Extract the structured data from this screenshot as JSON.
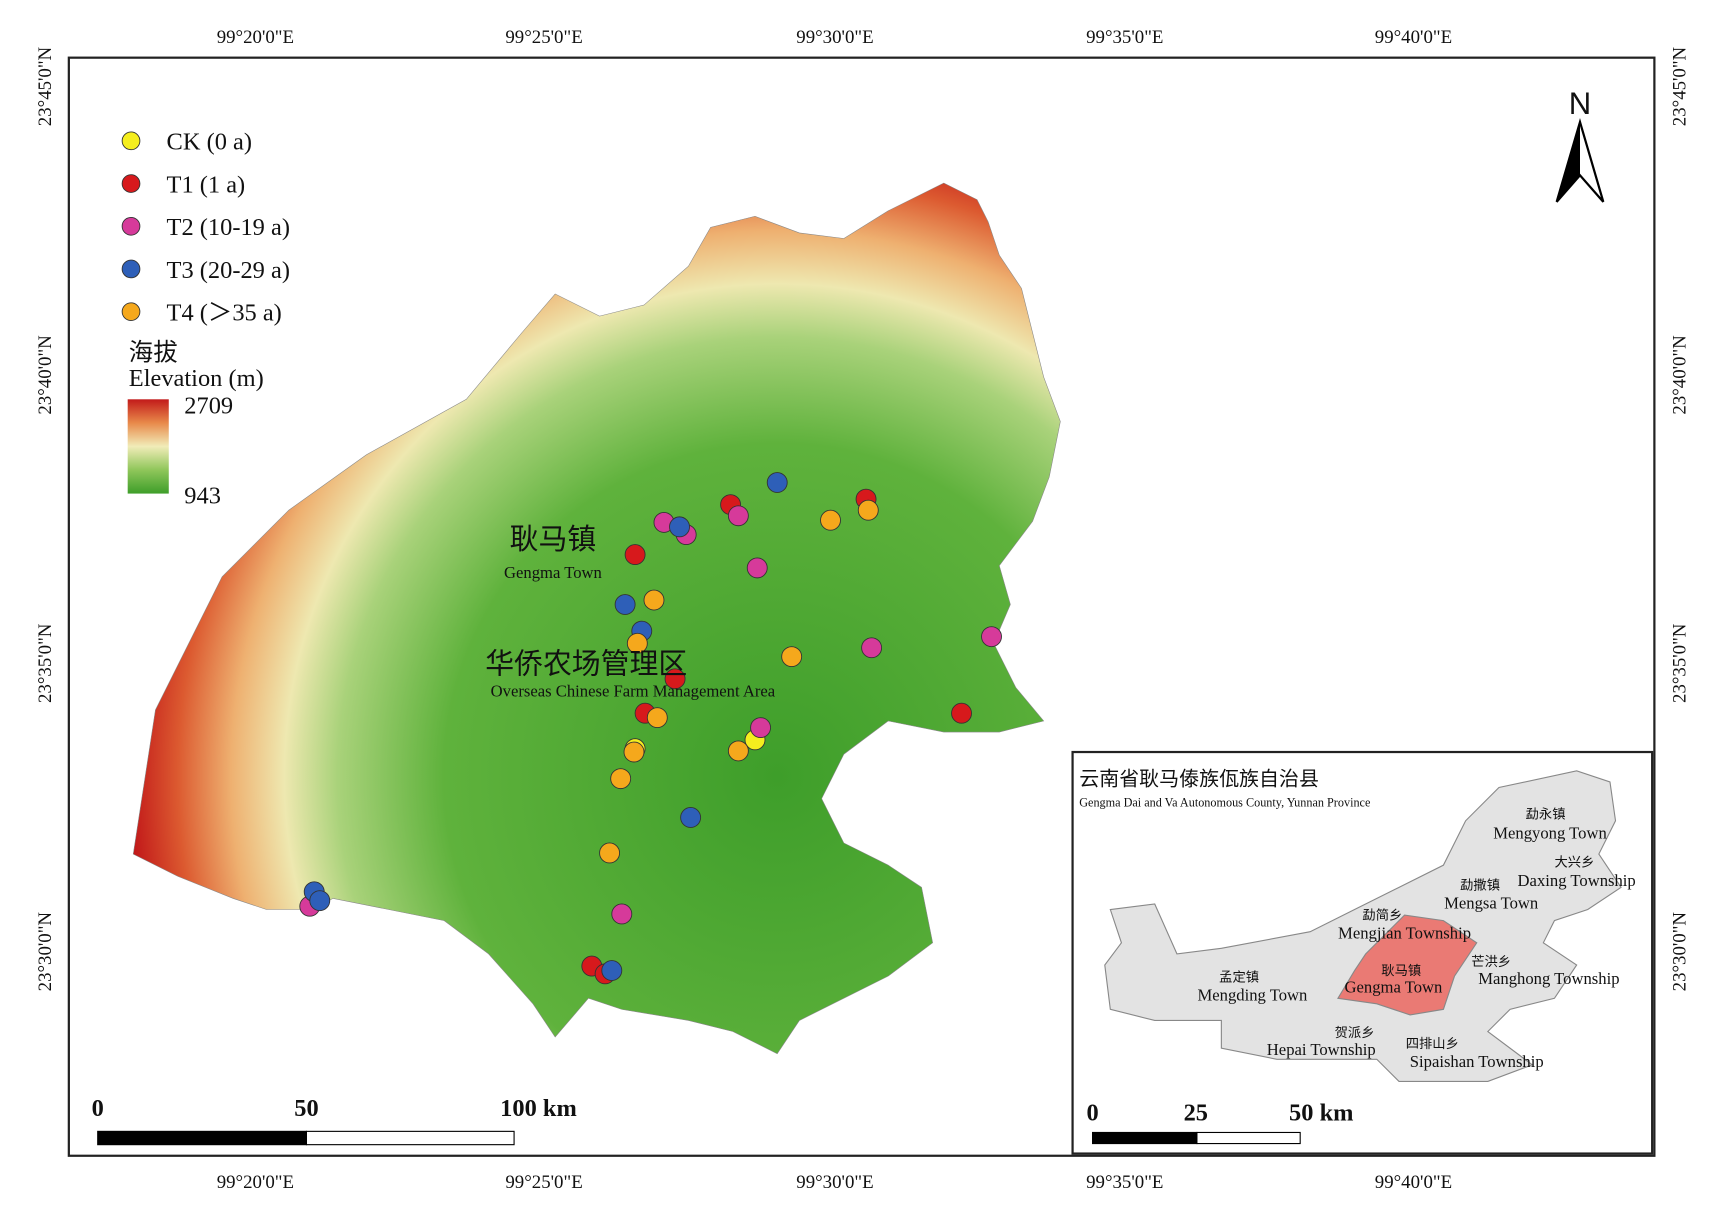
{
  "graticule": {
    "longitudes": [
      "99°20'0\"E",
      "99°25'0\"E",
      "99°30'0\"E",
      "99°35'0\"E",
      "99°40'0\"E"
    ],
    "latitudes": [
      "23°45'0\"N",
      "23°40'0\"N",
      "23°35'0\"N",
      "23°30'0\"N"
    ]
  },
  "legend": {
    "items": [
      {
        "label": "CK (0 a)",
        "color": "#f5ee1e"
      },
      {
        "label": "T1 (1 a)",
        "color": "#d7191c"
      },
      {
        "label": "T2 (10-19 a)",
        "color": "#d63a9a"
      },
      {
        "label": "T3 (20-29 a)",
        "color": "#2e5fb8"
      },
      {
        "label": "T4 (＞35 a)",
        "color": "#f5a81c"
      }
    ]
  },
  "elevation": {
    "title_zh": "海拔",
    "title_en": "Elevation (m)",
    "max": "2709",
    "min": "943"
  },
  "north": "N",
  "places": [
    {
      "zh": "耿马镇",
      "en": "Gengma Town"
    },
    {
      "zh": "华侨农场管理区",
      "en": "Overseas Chinese Farm Management Area"
    }
  ],
  "scale": [
    "0",
    "50",
    "100 km"
  ],
  "inset": {
    "title_zh": "云南省耿马傣族佤族自治县",
    "title_en": "Gengma Dai and Va Autonomous County, Yunnan Province",
    "townships": [
      {
        "zh": "勐永镇",
        "en": "Mengyong Town"
      },
      {
        "zh": "大兴乡",
        "en": "Daxing Township"
      },
      {
        "zh": "勐撒镇",
        "en": "Mengsa Town"
      },
      {
        "zh": "勐简乡",
        "en": "Mengjian Township"
      },
      {
        "zh": "芒洪乡",
        "en": "Manghong Township"
      },
      {
        "zh": "耿马镇",
        "en": "Gengma Town"
      },
      {
        "zh": "孟定镇",
        "en": "Mengding Town"
      },
      {
        "zh": "贺派乡",
        "en": "Hepai Township"
      },
      {
        "zh": "四排山乡",
        "en": "Sipaishan Township"
      }
    ],
    "scale": [
      "0",
      "25",
      "50 km"
    ]
  }
}
